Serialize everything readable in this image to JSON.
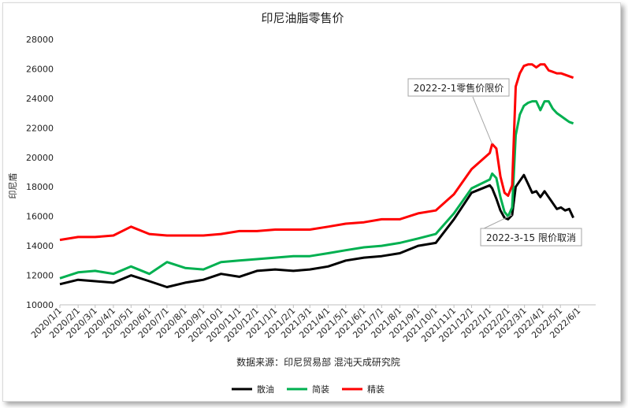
{
  "chart_data": {
    "type": "line",
    "title": "印尼油脂零售价",
    "ylabel": "印尼盾",
    "xlabel": "",
    "source": "数据来源：印尼贸易部  混沌天成研究院",
    "ylim": [
      10000,
      28000
    ],
    "yticks": [
      10000,
      12000,
      14000,
      16000,
      18000,
      20000,
      22000,
      24000,
      26000,
      28000
    ],
    "x_tick_labels": [
      "2020/1/1",
      "2020/2/1",
      "2020/3/1",
      "2020/4/1",
      "2020/5/1",
      "2020/6/1",
      "2020/7/1",
      "2020/8/1",
      "2020/9/1",
      "2020/10/1",
      "2020/11/1",
      "2020/12/1",
      "2021/1/1",
      "2021/2/1",
      "2021/3/1",
      "2021/4/1",
      "2021/5/1",
      "2021/6/1",
      "2021/7/1",
      "2021/8/1",
      "2021/9/1",
      "2021/10/1",
      "2021/11/1",
      "2021/12/1",
      "2022/1/1",
      "2022/2/1",
      "2022/3/1",
      "2022/4/1",
      "2022/5/1",
      "2022/6/1"
    ],
    "x_range": [
      "2020/1/1",
      "2022/6/30"
    ],
    "grid": false,
    "legend_position": "bottom",
    "series": [
      {
        "name": "散油",
        "color": "#000000",
        "points": [
          [
            "2020/1/1",
            11400
          ],
          [
            "2020/2/1",
            11700
          ],
          [
            "2020/3/1",
            11600
          ],
          [
            "2020/4/1",
            11500
          ],
          [
            "2020/5/1",
            12000
          ],
          [
            "2020/6/1",
            11600
          ],
          [
            "2020/7/1",
            11200
          ],
          [
            "2020/8/1",
            11500
          ],
          [
            "2020/9/1",
            11700
          ],
          [
            "2020/10/1",
            12100
          ],
          [
            "2020/11/1",
            11900
          ],
          [
            "2020/12/1",
            12300
          ],
          [
            "2021/1/1",
            12400
          ],
          [
            "2021/2/1",
            12300
          ],
          [
            "2021/3/1",
            12400
          ],
          [
            "2021/4/1",
            12600
          ],
          [
            "2021/5/1",
            13000
          ],
          [
            "2021/6/1",
            13200
          ],
          [
            "2021/7/1",
            13300
          ],
          [
            "2021/8/1",
            13500
          ],
          [
            "2021/9/1",
            14000
          ],
          [
            "2021/10/1",
            14200
          ],
          [
            "2021/11/1",
            15800
          ],
          [
            "2021/12/1",
            17600
          ],
          [
            "2022/1/1",
            18100
          ],
          [
            "2022/1/5",
            17900
          ],
          [
            "2022/1/12",
            17200
          ],
          [
            "2022/1/19",
            16400
          ],
          [
            "2022/1/26",
            15900
          ],
          [
            "2022/2/1",
            15800
          ],
          [
            "2022/2/8",
            16100
          ],
          [
            "2022/2/14",
            18000
          ],
          [
            "2022/2/21",
            18400
          ],
          [
            "2022/2/28",
            18800
          ],
          [
            "2022/3/7",
            18200
          ],
          [
            "2022/3/14",
            17600
          ],
          [
            "2022/3/21",
            17700
          ],
          [
            "2022/3/28",
            17300
          ],
          [
            "2022/4/4",
            17700
          ],
          [
            "2022/4/11",
            17300
          ],
          [
            "2022/4/18",
            16900
          ],
          [
            "2022/4/25",
            16500
          ],
          [
            "2022/5/2",
            16600
          ],
          [
            "2022/5/9",
            16400
          ],
          [
            "2022/5/16",
            16500
          ],
          [
            "2022/5/23",
            15900
          ]
        ]
      },
      {
        "name": "简装",
        "color": "#00b050",
        "points": [
          [
            "2020/1/1",
            11800
          ],
          [
            "2020/2/1",
            12200
          ],
          [
            "2020/3/1",
            12300
          ],
          [
            "2020/4/1",
            12100
          ],
          [
            "2020/5/1",
            12600
          ],
          [
            "2020/6/1",
            12100
          ],
          [
            "2020/7/1",
            12900
          ],
          [
            "2020/8/1",
            12500
          ],
          [
            "2020/9/1",
            12400
          ],
          [
            "2020/10/1",
            12900
          ],
          [
            "2020/11/1",
            13000
          ],
          [
            "2020/12/1",
            13100
          ],
          [
            "2021/1/1",
            13200
          ],
          [
            "2021/2/1",
            13300
          ],
          [
            "2021/3/1",
            13300
          ],
          [
            "2021/4/1",
            13500
          ],
          [
            "2021/5/1",
            13700
          ],
          [
            "2021/6/1",
            13900
          ],
          [
            "2021/7/1",
            14000
          ],
          [
            "2021/8/1",
            14200
          ],
          [
            "2021/9/1",
            14500
          ],
          [
            "2021/10/1",
            14800
          ],
          [
            "2021/11/1",
            16200
          ],
          [
            "2021/12/1",
            17900
          ],
          [
            "2022/1/1",
            18500
          ],
          [
            "2022/1/5",
            18900
          ],
          [
            "2022/1/12",
            18600
          ],
          [
            "2022/1/19",
            17300
          ],
          [
            "2022/1/26",
            16300
          ],
          [
            "2022/2/1",
            16000
          ],
          [
            "2022/2/8",
            16600
          ],
          [
            "2022/2/14",
            21500
          ],
          [
            "2022/2/21",
            22900
          ],
          [
            "2022/2/28",
            23500
          ],
          [
            "2022/3/7",
            23700
          ],
          [
            "2022/3/14",
            23800
          ],
          [
            "2022/3/21",
            23800
          ],
          [
            "2022/3/28",
            23200
          ],
          [
            "2022/4/4",
            23800
          ],
          [
            "2022/4/11",
            23800
          ],
          [
            "2022/4/18",
            23300
          ],
          [
            "2022/4/25",
            23000
          ],
          [
            "2022/5/2",
            22800
          ],
          [
            "2022/5/9",
            22600
          ],
          [
            "2022/5/16",
            22400
          ],
          [
            "2022/5/23",
            22300
          ]
        ]
      },
      {
        "name": "精装",
        "color": "#ff0000",
        "points": [
          [
            "2020/1/1",
            14400
          ],
          [
            "2020/2/1",
            14600
          ],
          [
            "2020/3/1",
            14600
          ],
          [
            "2020/4/1",
            14700
          ],
          [
            "2020/5/1",
            15300
          ],
          [
            "2020/6/1",
            14800
          ],
          [
            "2020/7/1",
            14700
          ],
          [
            "2020/8/1",
            14700
          ],
          [
            "2020/9/1",
            14700
          ],
          [
            "2020/10/1",
            14800
          ],
          [
            "2020/11/1",
            15000
          ],
          [
            "2020/12/1",
            15000
          ],
          [
            "2021/1/1",
            15100
          ],
          [
            "2021/2/1",
            15100
          ],
          [
            "2021/3/1",
            15100
          ],
          [
            "2021/4/1",
            15300
          ],
          [
            "2021/5/1",
            15500
          ],
          [
            "2021/6/1",
            15600
          ],
          [
            "2021/7/1",
            15800
          ],
          [
            "2021/8/1",
            15800
          ],
          [
            "2021/9/1",
            16200
          ],
          [
            "2021/10/1",
            16400
          ],
          [
            "2021/11/1",
            17500
          ],
          [
            "2021/12/1",
            19200
          ],
          [
            "2022/1/1",
            20300
          ],
          [
            "2022/1/5",
            20900
          ],
          [
            "2022/1/12",
            20600
          ],
          [
            "2022/1/19",
            18700
          ],
          [
            "2022/1/26",
            17600
          ],
          [
            "2022/2/1",
            17400
          ],
          [
            "2022/2/8",
            18100
          ],
          [
            "2022/2/14",
            24800
          ],
          [
            "2022/2/21",
            25700
          ],
          [
            "2022/2/28",
            26200
          ],
          [
            "2022/3/7",
            26300
          ],
          [
            "2022/3/14",
            26300
          ],
          [
            "2022/3/21",
            26100
          ],
          [
            "2022/3/28",
            26300
          ],
          [
            "2022/4/4",
            26300
          ],
          [
            "2022/4/11",
            25900
          ],
          [
            "2022/4/18",
            25800
          ],
          [
            "2022/4/25",
            25700
          ],
          [
            "2022/5/2",
            25700
          ],
          [
            "2022/5/9",
            25600
          ],
          [
            "2022/5/16",
            25500
          ],
          [
            "2022/5/23",
            25400
          ]
        ]
      }
    ],
    "annotations": [
      {
        "text": "2022-2-1零售价限价",
        "target_series": 2,
        "target": [
          "2022/1/5",
          20900
        ]
      },
      {
        "text": "2022-3-15 限价取消",
        "target_series": 0,
        "target": [
          "2022/2/8",
          16100
        ]
      }
    ]
  }
}
